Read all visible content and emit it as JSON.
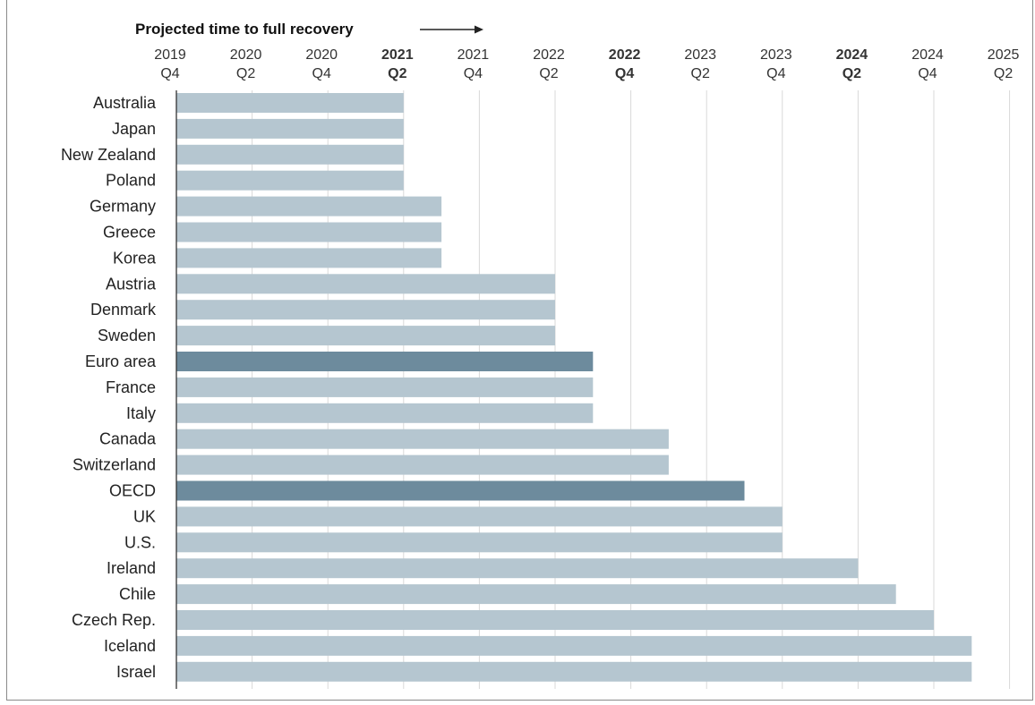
{
  "chart_data": {
    "type": "bar",
    "orientation": "horizontal",
    "title": "Projected time to full recovery",
    "x_ticks": [
      {
        "year": "2019",
        "quarter": "Q4",
        "bold": false
      },
      {
        "year": "2020",
        "quarter": "Q2",
        "bold": false
      },
      {
        "year": "2020",
        "quarter": "Q4",
        "bold": false
      },
      {
        "year": "2021",
        "quarter": "Q2",
        "bold": true
      },
      {
        "year": "2021",
        "quarter": "Q4",
        "bold": false
      },
      {
        "year": "2022",
        "quarter": "Q2",
        "bold": false
      },
      {
        "year": "2022",
        "quarter": "Q4",
        "bold": true
      },
      {
        "year": "2023",
        "quarter": "Q2",
        "bold": false
      },
      {
        "year": "2023",
        "quarter": "Q4",
        "bold": false
      },
      {
        "year": "2024",
        "quarter": "Q2",
        "bold": true
      },
      {
        "year": "2024",
        "quarter": "Q4",
        "bold": false
      },
      {
        "year": "2025",
        "quarter": "Q2",
        "bold": false
      }
    ],
    "x_unit": "quarters after 2019 Q4",
    "xlim": [
      0,
      22
    ],
    "grid": true,
    "colors": {
      "bar": "#b5c6d0",
      "highlight": "#6d8b9d",
      "grid": "#d9d9d9",
      "axis": "#333333"
    },
    "categories": [
      "Australia",
      "Japan",
      "New Zealand",
      "Poland",
      "Germany",
      "Greece",
      "Korea",
      "Austria",
      "Denmark",
      "Sweden",
      "Euro area",
      "France",
      "Italy",
      "Canada",
      "Switzerland",
      "OECD",
      "UK",
      "U.S.",
      "Ireland",
      "Chile",
      "Czech Rep.",
      "Iceland",
      "Israel"
    ],
    "series": [
      {
        "values": [
          6,
          6,
          6,
          6,
          7,
          7,
          7,
          10,
          10,
          10,
          11,
          11,
          11,
          13,
          13,
          15,
          16,
          16,
          18,
          19,
          20,
          21,
          21
        ],
        "highlight": [
          false,
          false,
          false,
          false,
          false,
          false,
          false,
          false,
          false,
          false,
          true,
          false,
          false,
          false,
          false,
          true,
          false,
          false,
          false,
          false,
          false,
          false,
          false
        ]
      }
    ]
  }
}
